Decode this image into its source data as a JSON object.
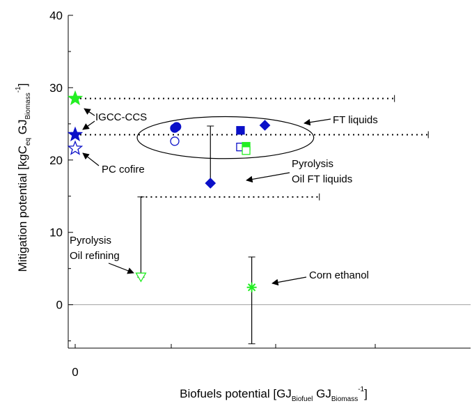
{
  "chart_data": {
    "type": "scatter",
    "xlabel": {
      "main": "Biofuels potential [GJ",
      "sub1": "Biofuel",
      "mid": " GJ",
      "sub2": "Biomass",
      "sup": "-1",
      "end": "]"
    },
    "ylabel": {
      "main": "Mitigation potential [kgC",
      "sub1": "eq",
      "mid": "  GJ",
      "sub2": "Biomass",
      "sup": "-1",
      "end": "]"
    },
    "x_ticks": [
      "0"
    ],
    "y_ticks": [
      "0",
      "10",
      "20",
      "30",
      "40"
    ],
    "ylim": [
      -6,
      40
    ],
    "grid": false,
    "points": [
      {
        "x": 0.0,
        "y": 28.5,
        "marker": "star",
        "fill": "#22ee22",
        "stroke": "#22ee22",
        "hollow": false
      },
      {
        "x": 0.0,
        "y": 23.5,
        "marker": "star",
        "fill": "#0b10c8",
        "stroke": "#0b10c8",
        "hollow": false
      },
      {
        "x": 0.0,
        "y": 21.6,
        "marker": "star",
        "fill": "none",
        "stroke": "#0b10c8",
        "hollow": true
      },
      {
        "x": 0.27,
        "y": 24.6,
        "marker": "circle",
        "fill": "#0b10c8",
        "stroke": "#0b10c8",
        "hollow": false
      },
      {
        "x": 0.265,
        "y": 24.4,
        "marker": "circle",
        "fill": "#0b10c8",
        "stroke": "#0b10c8",
        "hollow": false
      },
      {
        "x": 0.265,
        "y": 22.6,
        "marker": "circle",
        "fill": "none",
        "stroke": "#0b10c8",
        "hollow": true
      },
      {
        "x": 0.44,
        "y": 24.1,
        "marker": "square",
        "fill": "#0b10c8",
        "stroke": "#0b10c8",
        "hollow": false
      },
      {
        "x": 0.44,
        "y": 21.8,
        "marker": "square",
        "fill": "none",
        "stroke": "#0b10c8",
        "hollow": true
      },
      {
        "x": 0.455,
        "y": 21.9,
        "marker": "square",
        "fill": "#22ee22",
        "stroke": "#22ee22",
        "hollow": false
      },
      {
        "x": 0.455,
        "y": 21.3,
        "marker": "square",
        "fill": "none",
        "stroke": "#22ee22",
        "hollow": true
      },
      {
        "x": 0.505,
        "y": 24.8,
        "marker": "diamond",
        "fill": "#0b10c8",
        "stroke": "#0b10c8",
        "hollow": false
      },
      {
        "x": 0.36,
        "y": 16.8,
        "marker": "diamond",
        "fill": "#0b10c8",
        "stroke": "#0b10c8",
        "hollow": false
      },
      {
        "x": 0.175,
        "y": 3.8,
        "marker": "triangle-down",
        "fill": "none",
        "stroke": "#22ee22",
        "hollow": true
      },
      {
        "x": 0.47,
        "y": 2.4,
        "marker": "asterisk",
        "fill": "#22ee22",
        "stroke": "#22ee22",
        "hollow": false
      }
    ],
    "dotted_lines": [
      {
        "y": 28.5,
        "x1": 0.0,
        "x2": 0.85
      },
      {
        "y": 23.5,
        "x1": 0.0,
        "x2": 0.94
      },
      {
        "y": 14.9,
        "x1": 0.175,
        "x2": 0.65
      }
    ],
    "error_bars": [
      {
        "x": 0.175,
        "y_low": 3.8,
        "y_high": 14.9
      },
      {
        "x": 0.36,
        "y_low": 16.8,
        "y_high": 24.7
      },
      {
        "x": 0.47,
        "y_low": -5.4,
        "y_high": 6.6
      }
    ],
    "ellipse": {
      "cx": 0.4,
      "cy": 23.1,
      "rx": 0.235,
      "ry": 2.9
    },
    "annotations": [
      {
        "id": "igcc",
        "text": "IGCC-CCS"
      },
      {
        "id": "pc",
        "text": "PC cofire"
      },
      {
        "id": "ft",
        "text": "FT liquids"
      },
      {
        "id": "pyro_ft",
        "lines": [
          "Pyrolysis",
          "Oil FT liquids"
        ]
      },
      {
        "id": "pyro_ref",
        "lines": [
          "Pyrolysis",
          "Oil refining"
        ]
      },
      {
        "id": "corn",
        "text": "Corn ethanol"
      }
    ]
  }
}
